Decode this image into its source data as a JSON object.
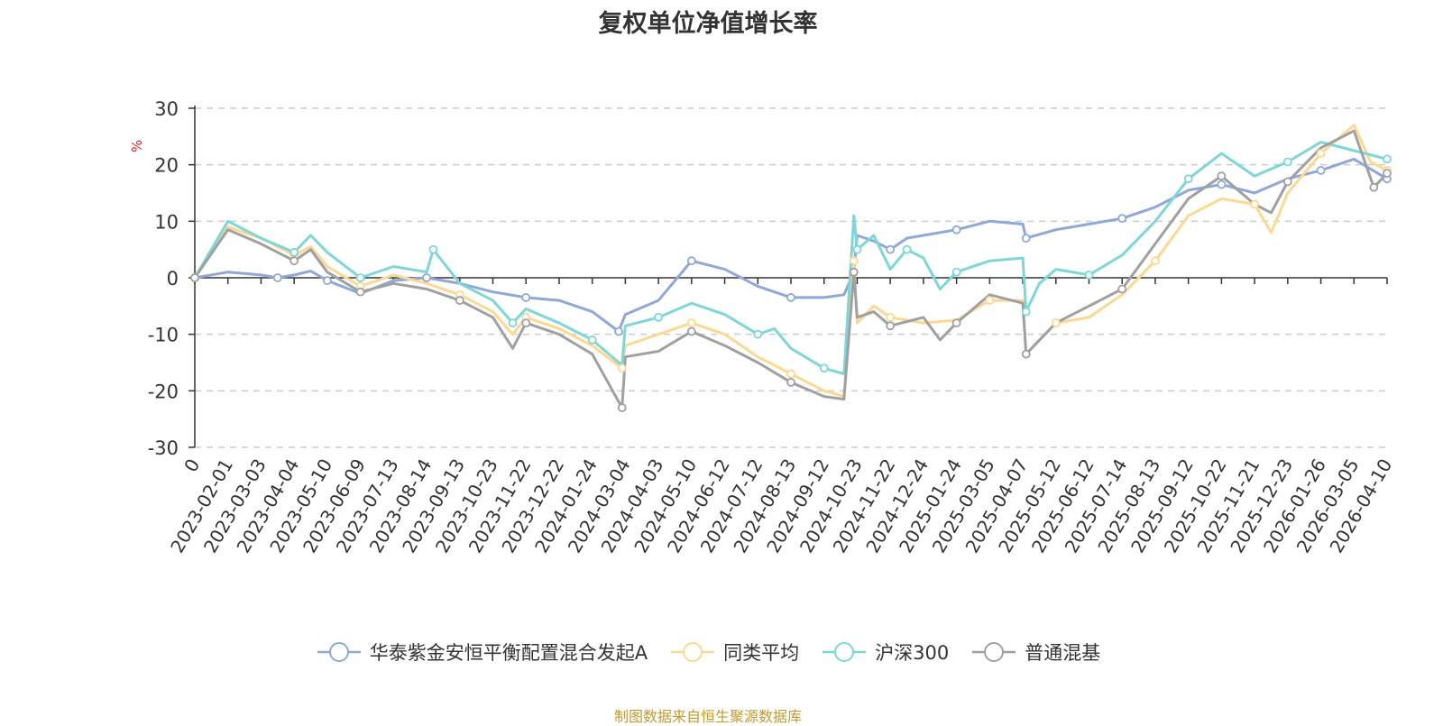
{
  "chart_data": {
    "type": "line",
    "title": "复权单位净值增长率",
    "ylabel": "%",
    "ylim": [
      -30,
      30
    ],
    "yticks": [
      30,
      20,
      10,
      0,
      -10,
      -20,
      -30
    ],
    "grid": true,
    "legend_position": "bottom",
    "x_tick_labels": [
      "0",
      "2023-02-01",
      "2023-03-03",
      "2023-04-04",
      "2023-05-10",
      "2023-06-09",
      "2023-07-13",
      "2023-08-14",
      "2023-09-13",
      "2023-10-23",
      "2023-11-22",
      "2023-12-22",
      "2024-01-24",
      "2024-03-04",
      "2024-04-03",
      "2024-05-10",
      "2024-06-12",
      "2024-07-12",
      "2024-08-13",
      "2024-09-12",
      "2024-10-23",
      "2024-11-22",
      "2024-12-24",
      "2025-01-24",
      "2025-03-05",
      "2025-04-07",
      "2025-05-12",
      "2025-06-12",
      "2025-07-14",
      "2025-08-13",
      "2025-09-12",
      "2025-10-22",
      "2025-11-21",
      "2025-12-23",
      "2026-01-26",
      "2026-03-05",
      "2026-04-10"
    ],
    "x_index": [
      0,
      1,
      2,
      3,
      4,
      5,
      6,
      7,
      8,
      9,
      10,
      11,
      12,
      13,
      14,
      15,
      16,
      17,
      18,
      19,
      20,
      21,
      22,
      23,
      24,
      25,
      26,
      27,
      28,
      29,
      30,
      31,
      32,
      33,
      34,
      35,
      36
    ],
    "series": [
      {
        "name": "华泰紫金安恒平衡配置混合发起A",
        "color": "#8fa8d8",
        "x": [
          0,
          1,
          2,
          2.5,
          3,
          3.5,
          4,
          5,
          6,
          7,
          8,
          9,
          10,
          11,
          12,
          12.8,
          13,
          14,
          15,
          16,
          17,
          18,
          19,
          19.6,
          19.9,
          20,
          20.5,
          21,
          21.5,
          22,
          23,
          24,
          25,
          25.1,
          26,
          27,
          28,
          29,
          30,
          31,
          32,
          33,
          34,
          35,
          36
        ],
        "values": [
          0,
          1.0,
          0.5,
          0.0,
          0.5,
          1.2,
          -0.5,
          -2.8,
          -0.5,
          0.0,
          -1.0,
          -2.5,
          -3.5,
          -4.0,
          -6.0,
          -9.5,
          -6.5,
          -4.0,
          3.0,
          1.5,
          -1.5,
          -3.5,
          -3.5,
          -3.0,
          1.0,
          7.5,
          6.5,
          5.0,
          7.0,
          7.5,
          8.5,
          10.0,
          9.5,
          7.0,
          8.5,
          9.5,
          10.5,
          12.5,
          15.5,
          16.5,
          15.0,
          17.5,
          19.0,
          21.0,
          17.5
        ]
      },
      {
        "name": "同类平均",
        "color": "#fdd892",
        "x": [
          0,
          1,
          2,
          3,
          3.5,
          4,
          5,
          6,
          7,
          8,
          9,
          9.6,
          10,
          11,
          12,
          12.9,
          13,
          14,
          15,
          16,
          17,
          18,
          19,
          19.6,
          19.9,
          20,
          20.5,
          21,
          22,
          23,
          24,
          25,
          25.1,
          26,
          27,
          28,
          29,
          30,
          31,
          32,
          32.5,
          33,
          34,
          35,
          35.5,
          36
        ],
        "values": [
          0,
          9.0,
          7.0,
          4.0,
          5.5,
          2.0,
          -1.5,
          0.5,
          -1.0,
          -3.0,
          -6.0,
          -10.0,
          -7.0,
          -9.0,
          -12.0,
          -16.0,
          -12.0,
          -10.0,
          -8.0,
          -10.0,
          -14.0,
          -17.0,
          -20.0,
          -21.0,
          3.0,
          -8.0,
          -5.0,
          -7.0,
          -8.0,
          -7.5,
          -4.0,
          -4.0,
          -13.5,
          -8.0,
          -7.0,
          -3.0,
          3.0,
          11.0,
          14.0,
          13.0,
          8.0,
          15.0,
          22.0,
          27.0,
          20.5,
          19.0
        ]
      },
      {
        "name": "沪深300",
        "color": "#7fd6d6",
        "x": [
          0,
          1,
          2,
          3,
          3.5,
          4,
          5,
          6,
          7,
          7.2,
          8,
          9,
          9.6,
          10,
          11,
          12,
          12.9,
          13,
          14,
          15,
          16,
          17,
          17.5,
          18,
          19,
          19.6,
          19.9,
          20,
          20.5,
          21,
          21.5,
          22,
          22.5,
          23,
          24,
          25,
          25.1,
          25.5,
          26,
          27,
          28,
          29,
          30,
          31,
          32,
          33,
          34,
          35,
          36
        ],
        "values": [
          0,
          10.0,
          7.0,
          4.5,
          7.5,
          4.5,
          0.0,
          2.0,
          1.0,
          5.0,
          -1.0,
          -4.0,
          -8.0,
          -5.5,
          -8.0,
          -11.0,
          -15.5,
          -8.5,
          -7.0,
          -4.5,
          -6.5,
          -10.0,
          -9.0,
          -12.5,
          -16.0,
          -17.0,
          11.0,
          5.0,
          7.5,
          1.5,
          5.0,
          3.5,
          -2.0,
          1.0,
          3.0,
          3.5,
          -6.0,
          -1.0,
          1.5,
          0.5,
          4.0,
          10.0,
          17.5,
          22.0,
          18.0,
          20.5,
          24.0,
          22.5,
          21.0
        ]
      },
      {
        "name": "普通混基",
        "color": "#a0a0a0",
        "x": [
          0,
          1,
          2,
          3,
          3.5,
          4,
          5,
          6,
          7,
          8,
          9,
          9.6,
          10,
          11,
          12,
          12.9,
          13,
          14,
          15,
          16,
          17,
          18,
          19,
          19.6,
          19.9,
          20,
          20.5,
          21,
          22,
          22.5,
          23,
          24,
          25,
          25.1,
          26,
          27,
          28,
          29,
          30,
          31,
          32,
          32.5,
          33,
          34,
          35,
          35.6,
          36
        ],
        "values": [
          0,
          8.5,
          6.0,
          3.0,
          5.0,
          1.0,
          -2.5,
          -1.0,
          -2.0,
          -4.0,
          -7.0,
          -12.5,
          -8.0,
          -10.0,
          -13.5,
          -23.0,
          -14.0,
          -13.0,
          -9.5,
          -12.0,
          -15.0,
          -18.5,
          -21.0,
          -21.5,
          1.0,
          -7.0,
          -6.0,
          -8.5,
          -7.0,
          -11.0,
          -8.0,
          -3.0,
          -4.5,
          -13.5,
          -8.0,
          -5.0,
          -2.0,
          6.0,
          14.0,
          18.0,
          13.0,
          11.5,
          17.0,
          23.0,
          26.0,
          16.0,
          18.5
        ]
      }
    ]
  },
  "source_note": "制图数据来自恒生聚源数据库"
}
